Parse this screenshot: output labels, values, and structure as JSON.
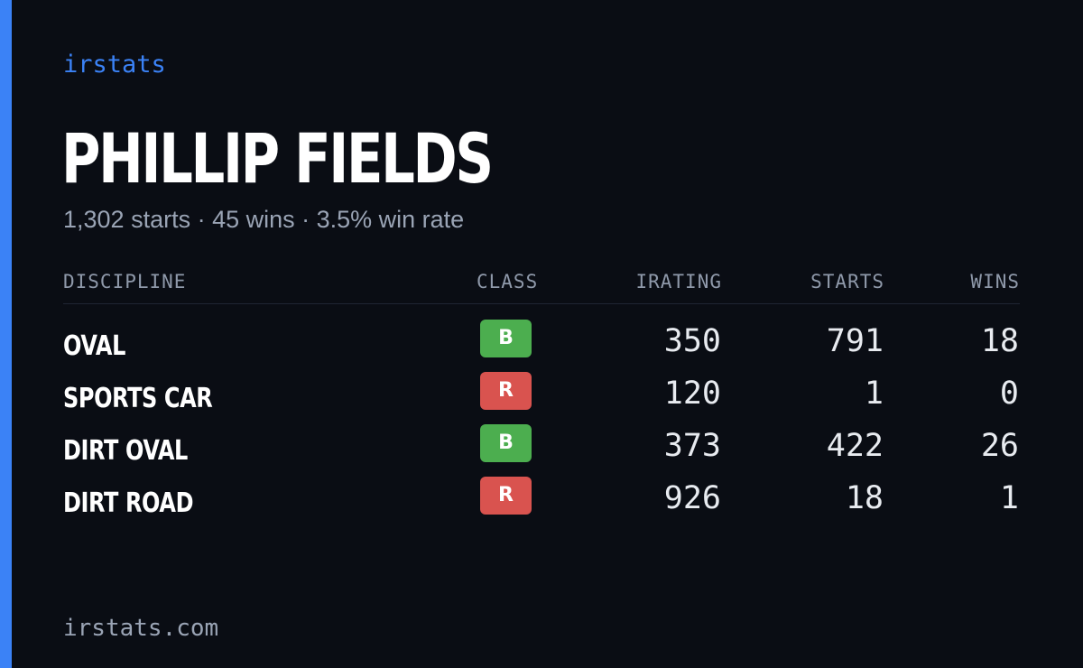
{
  "brand": "irstats",
  "driver": {
    "name": "PHILLIP FIELDS",
    "summary": "1,302 starts · 45 wins · 3.5% win rate"
  },
  "table": {
    "headers": {
      "discipline": "DISCIPLINE",
      "class": "CLASS",
      "irating": "IRATING",
      "starts": "STARTS",
      "wins": "WINS"
    },
    "rows": [
      {
        "discipline": "OVAL",
        "class": "B",
        "irating": "350",
        "starts": "791",
        "wins": "18"
      },
      {
        "discipline": "SPORTS CAR",
        "class": "R",
        "irating": "120",
        "starts": "1",
        "wins": "0"
      },
      {
        "discipline": "DIRT OVAL",
        "class": "B",
        "irating": "373",
        "starts": "422",
        "wins": "26"
      },
      {
        "discipline": "DIRT ROAD",
        "class": "R",
        "irating": "926",
        "starts": "18",
        "wins": "1"
      }
    ]
  },
  "footer": "irstats.com",
  "colors": {
    "accent": "#3b82f6",
    "class_B": "#4cae4f",
    "class_R": "#d9534f",
    "background": "#0a0d14"
  }
}
